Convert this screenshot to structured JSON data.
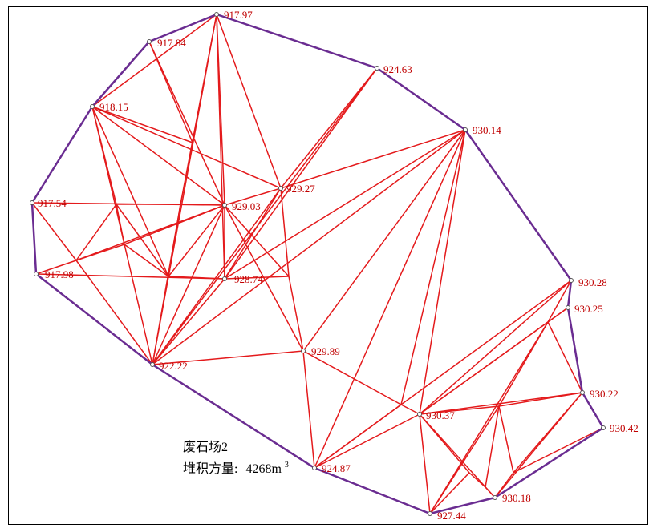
{
  "diagram": {
    "colors": {
      "triangulation": "#e41a1c",
      "boundary": "#6a2c91",
      "label": "#c00000",
      "text": "#000000"
    },
    "elevations": {
      "p1": "917.97",
      "p2": "917.84",
      "p3": "924.63",
      "p4": "918.15",
      "p5": "930.14",
      "p6": "929.27",
      "p7": "917.54",
      "p8": "929.03",
      "p9": "917.98",
      "p10": "928.74",
      "p11": "930.28",
      "p12": "930.25",
      "p13": "929.89",
      "p14": "922.22",
      "p15": "930.22",
      "p16": "930.37",
      "p17": "930.42",
      "p18": "924.87",
      "p19": "930.18",
      "p20": "927.44"
    },
    "annotation": {
      "name": "废石场2",
      "volume_label": "堆积方量:",
      "volume_value": "4268m",
      "volume_sup": "3"
    }
  }
}
